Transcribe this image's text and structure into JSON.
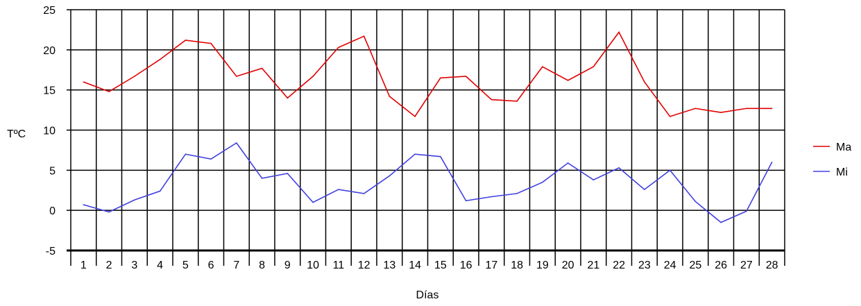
{
  "chart_data": {
    "type": "line",
    "title": "",
    "xlabel": "Días",
    "ylabel": "TºC",
    "categories": [
      "1",
      "2",
      "3",
      "4",
      "5",
      "6",
      "7",
      "8",
      "9",
      "10",
      "11",
      "12",
      "13",
      "14",
      "15",
      "16",
      "17",
      "18",
      "19",
      "20",
      "21",
      "22",
      "23",
      "24",
      "25",
      "26",
      "27",
      "28"
    ],
    "ylim": [
      -5,
      25
    ],
    "yticks": [
      "-5",
      "0",
      "5",
      "10",
      "15",
      "20",
      "25"
    ],
    "grid": true,
    "legend_position": "right",
    "series": [
      {
        "name": "Ma",
        "color": "#e00000",
        "values": [
          16.0,
          14.8,
          16.7,
          18.8,
          21.2,
          20.8,
          16.7,
          17.7,
          14.0,
          16.7,
          20.3,
          21.7,
          14.2,
          11.7,
          16.5,
          16.7,
          13.8,
          13.6,
          17.9,
          16.2,
          17.9,
          22.2,
          16.0,
          11.7,
          12.7,
          12.2,
          12.7,
          12.7
        ]
      },
      {
        "name": "Mi",
        "color": "#4040e0",
        "values": [
          0.7,
          -0.2,
          1.3,
          2.4,
          7.0,
          6.4,
          8.4,
          4.0,
          4.6,
          1.0,
          2.6,
          2.1,
          4.3,
          7.0,
          6.7,
          1.2,
          1.7,
          2.1,
          3.5,
          5.9,
          3.8,
          5.3,
          2.6,
          5.0,
          1.1,
          -1.5,
          -0.1,
          6.0
        ]
      }
    ]
  }
}
